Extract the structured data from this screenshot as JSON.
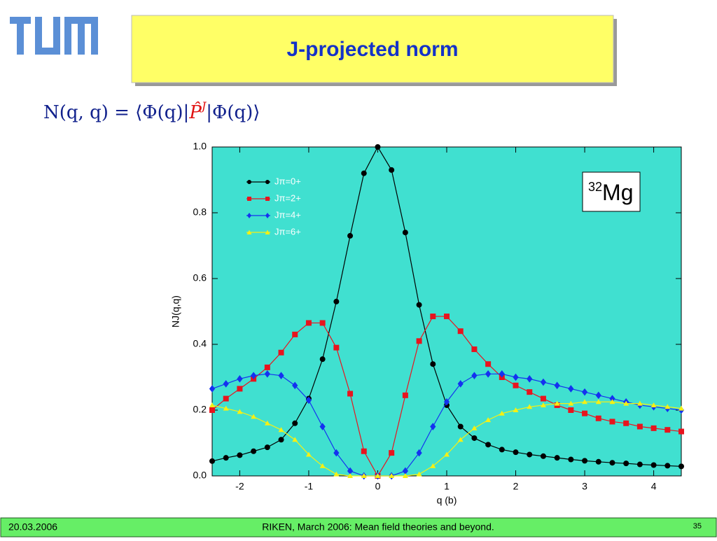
{
  "slide_title": "J-projected norm",
  "formula": [
    "N(q, q) = ⟨Φ(q)|",
    "P̂",
    "J",
    "|Φ(q)⟩"
  ],
  "footer": {
    "date": "20.03.2006",
    "text": "RIKEN, March 2006: Mean field theories and beyond.",
    "page": "35"
  },
  "annotation": {
    "mass": "32",
    "element": "Mg"
  },
  "chart_data": {
    "type": "line",
    "xlabel": "q (b)",
    "ylabel": "NJ(q,q)",
    "xlim": [
      -2.4,
      4.4
    ],
    "ylim": [
      0,
      1
    ],
    "xticks": [
      -2,
      -1,
      0,
      1,
      2,
      3,
      4
    ],
    "yticks": [
      {
        "value": 0,
        "label": "0.0"
      },
      0.2,
      0.4,
      0.6,
      0.8,
      {
        "value": 1,
        "label": "1.0"
      }
    ],
    "background": "#40e0d0",
    "legend": "upper-left",
    "x": [
      -2.4,
      -2.2,
      -2.0,
      -1.8,
      -1.6,
      -1.4,
      -1.2,
      -1.0,
      -0.8,
      -0.6,
      -0.4,
      -0.2,
      0,
      0.2,
      0.4,
      0.6,
      0.8,
      1.0,
      1.2,
      1.4,
      1.6,
      1.8,
      2.0,
      2.2,
      2.4,
      2.6,
      2.8,
      3.0,
      3.2,
      3.4,
      3.6,
      3.8,
      4.0,
      4.2,
      4.4
    ],
    "series": [
      {
        "name": "Jπ=0+",
        "color": "#000000",
        "marker": "circle",
        "values": [
          0.045,
          0.055,
          0.063,
          0.075,
          0.087,
          0.11,
          0.16,
          0.235,
          0.355,
          0.53,
          0.73,
          0.92,
          1.0,
          0.93,
          0.74,
          0.52,
          0.34,
          0.215,
          0.15,
          0.115,
          0.095,
          0.08,
          0.072,
          0.065,
          0.06,
          0.055,
          0.05,
          0.046,
          0.043,
          0.04,
          0.038,
          0.035,
          0.033,
          0.031,
          0.029
        ]
      },
      {
        "name": "Jπ=2+",
        "color": "#e8141e",
        "marker": "square",
        "values": [
          0.2,
          0.235,
          0.265,
          0.295,
          0.33,
          0.375,
          0.43,
          0.465,
          0.465,
          0.39,
          0.25,
          0.075,
          0,
          0.07,
          0.245,
          0.41,
          0.485,
          0.485,
          0.44,
          0.385,
          0.34,
          0.3,
          0.275,
          0.255,
          0.235,
          0.215,
          0.2,
          0.19,
          0.175,
          0.165,
          0.16,
          0.15,
          0.145,
          0.14,
          0.135
        ]
      },
      {
        "name": "Jπ=4+",
        "color": "#1432f0",
        "marker": "diamond",
        "values": [
          0.265,
          0.28,
          0.295,
          0.305,
          0.31,
          0.305,
          0.275,
          0.23,
          0.15,
          0.07,
          0.015,
          0,
          0,
          0,
          0.015,
          0.07,
          0.15,
          0.225,
          0.28,
          0.305,
          0.31,
          0.31,
          0.3,
          0.295,
          0.285,
          0.275,
          0.265,
          0.255,
          0.245,
          0.235,
          0.225,
          0.215,
          0.21,
          0.205,
          0.2
        ]
      },
      {
        "name": "Jπ=6+",
        "color": "#f5f014",
        "marker": "triangle",
        "values": [
          0.215,
          0.205,
          0.195,
          0.18,
          0.16,
          0.14,
          0.11,
          0.065,
          0.03,
          0.005,
          0,
          0,
          0,
          0,
          0,
          0.005,
          0.03,
          0.065,
          0.11,
          0.145,
          0.17,
          0.19,
          0.2,
          0.21,
          0.215,
          0.22,
          0.22,
          0.225,
          0.225,
          0.225,
          0.22,
          0.22,
          0.215,
          0.21,
          0.205
        ]
      }
    ]
  }
}
